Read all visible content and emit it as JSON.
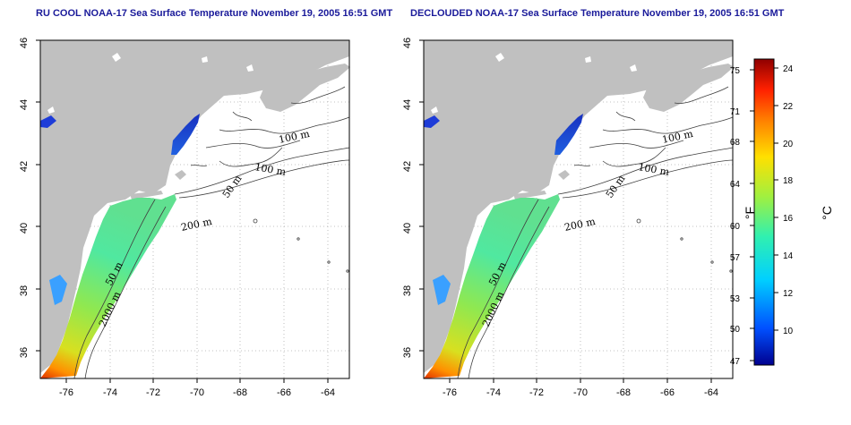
{
  "titles": {
    "left": "RU COOL NOAA-17 Sea Surface Temperature November 19, 2005 16:51 GMT",
    "right": "DECLOUDED NOAA-17 Sea Surface Temperature November 19, 2005 16:51 GMT"
  },
  "axes": {
    "lat_ticks": [
      "46",
      "44",
      "42",
      "40",
      "38",
      "36"
    ],
    "lon_ticks": [
      "-76",
      "-74",
      "-72",
      "-70",
      "-68",
      "-66",
      "-64"
    ],
    "lat_range": [
      35,
      46
    ],
    "lon_range": [
      -77.2,
      -63
    ]
  },
  "contour_labels": {
    "c100a": "100 m",
    "c100b": "100 m",
    "c50a": "50 m",
    "c200": "200 m",
    "c50b": "50 m",
    "c2000": "2000 m"
  },
  "colorbar": {
    "fahrenheit_ticks": [
      "75",
      "71",
      "68",
      "64",
      "60",
      "57",
      "53",
      "50",
      "47"
    ],
    "celsius_ticks": [
      "24",
      "22",
      "20",
      "18",
      "16",
      "14",
      "12",
      "10"
    ],
    "fahrenheit_unit": "°F",
    "celsius_unit": "°C",
    "colors": [
      "#00008f",
      "#0050ff",
      "#00d0ff",
      "#30f0b0",
      "#a0f040",
      "#ffe000",
      "#ff8000",
      "#ff2000",
      "#8f0000"
    ]
  }
}
